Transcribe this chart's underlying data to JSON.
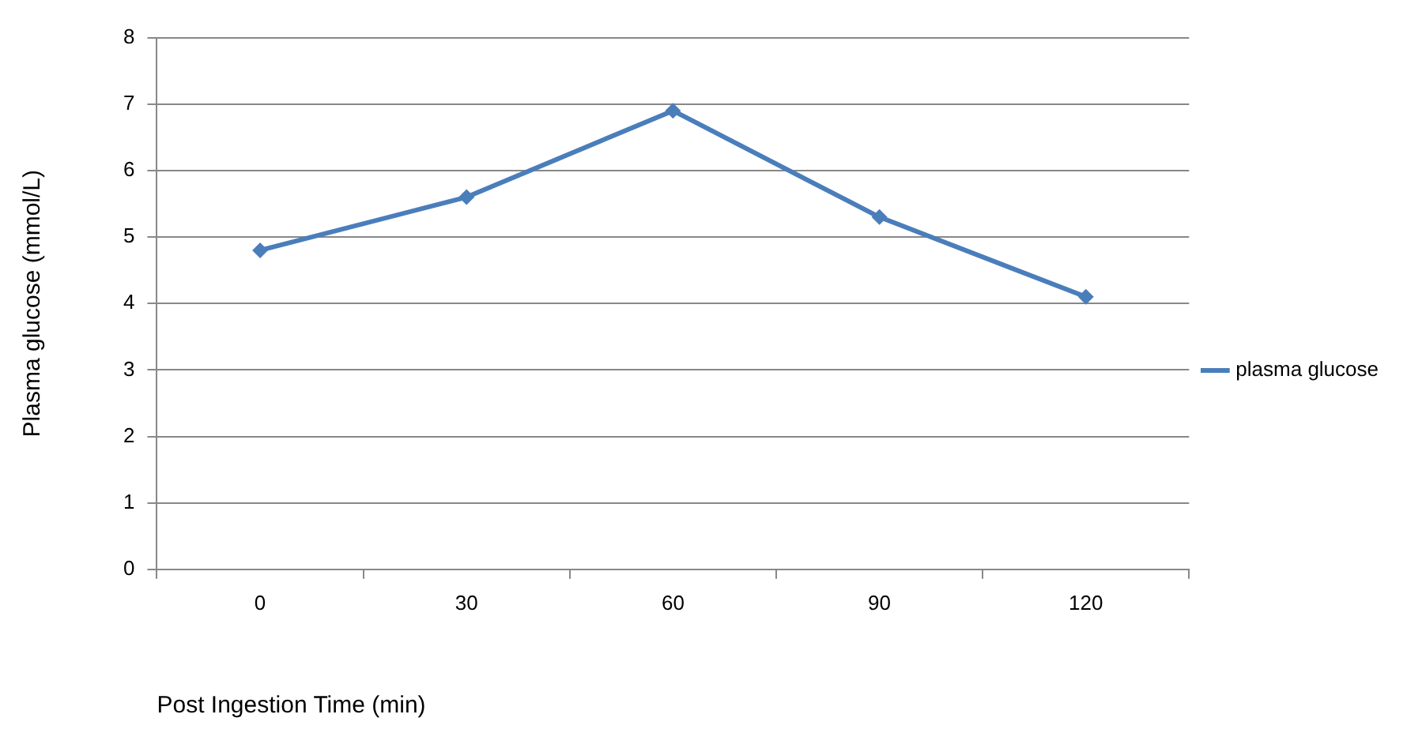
{
  "chart_data": {
    "type": "line",
    "xlabel": "Post Ingestion Time (min)",
    "ylabel": "Plasma glucose (mmol/L)",
    "categories": [
      "0",
      "30",
      "60",
      "90",
      "120"
    ],
    "series": [
      {
        "name": "plasma glucose",
        "color": "#4a7ebb",
        "values": [
          4.8,
          5.6,
          6.9,
          5.3,
          4.1
        ]
      }
    ],
    "ylim": [
      0,
      8
    ],
    "yticks": [
      0,
      1,
      2,
      3,
      4,
      5,
      6,
      7,
      8
    ],
    "grid": "y",
    "legend": "right",
    "marker": "diamond",
    "line_style": "solid"
  }
}
